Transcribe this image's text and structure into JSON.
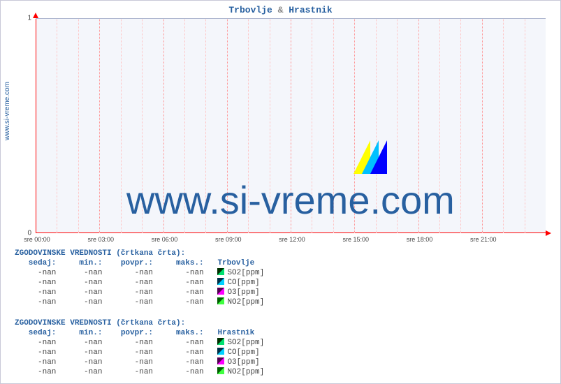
{
  "title": {
    "part1": "Trbovlje",
    "sep": "&",
    "part2": "Hrastnik"
  },
  "ylabel": "www.si-vreme.com",
  "watermark": "www.si-vreme.com",
  "chart": {
    "type": "line",
    "background_color": "#f4f6fb",
    "axis_color": "#ff0000",
    "grid_color_minor": "#ffc0c0",
    "grid_color_major": "#ff9090",
    "hgrid_color": "#b0b8d0",
    "ylim": [
      0,
      1
    ],
    "yticks": [
      0,
      1
    ],
    "xticks": [
      "sre 00:00",
      "sre 03:00",
      "sre 06:00",
      "sre 09:00",
      "sre 12:00",
      "sre 15:00",
      "sre 18:00",
      "sre 21:00"
    ],
    "minor_per_major": 3,
    "watermark_colors": [
      "#ffff00",
      "#00c0ff",
      "#0000ff"
    ]
  },
  "legends": [
    {
      "title": "ZGODOVINSKE VREDNOSTI (črtkana črta):",
      "columns": [
        "sedaj:",
        "min.:",
        "povpr.:",
        "maks.:"
      ],
      "station": "Trbovlje",
      "rows": [
        {
          "values": [
            "-nan",
            "-nan",
            "-nan",
            "-nan"
          ],
          "swatch": [
            "#003000",
            "#00e070"
          ],
          "label": "SO2[ppm]"
        },
        {
          "values": [
            "-nan",
            "-nan",
            "-nan",
            "-nan"
          ],
          "swatch": [
            "#003048",
            "#00d0ff"
          ],
          "label": "CO[ppm]"
        },
        {
          "values": [
            "-nan",
            "-nan",
            "-nan",
            "-nan"
          ],
          "swatch": [
            "#500050",
            "#ff00ff"
          ],
          "label": "O3[ppm]"
        },
        {
          "values": [
            "-nan",
            "-nan",
            "-nan",
            "-nan"
          ],
          "swatch": [
            "#006000",
            "#40ff40"
          ],
          "label": "NO2[ppm]"
        }
      ]
    },
    {
      "title": "ZGODOVINSKE VREDNOSTI (črtkana črta):",
      "columns": [
        "sedaj:",
        "min.:",
        "povpr.:",
        "maks.:"
      ],
      "station": "Hrastnik",
      "rows": [
        {
          "values": [
            "-nan",
            "-nan",
            "-nan",
            "-nan"
          ],
          "swatch": [
            "#003000",
            "#00e070"
          ],
          "label": "SO2[ppm]"
        },
        {
          "values": [
            "-nan",
            "-nan",
            "-nan",
            "-nan"
          ],
          "swatch": [
            "#003048",
            "#00d0ff"
          ],
          "label": "CO[ppm]"
        },
        {
          "values": [
            "-nan",
            "-nan",
            "-nan",
            "-nan"
          ],
          "swatch": [
            "#500050",
            "#ff00ff"
          ],
          "label": "O3[ppm]"
        },
        {
          "values": [
            "-nan",
            "-nan",
            "-nan",
            "-nan"
          ],
          "swatch": [
            "#006000",
            "#40ff40"
          ],
          "label": "NO2[ppm]"
        }
      ]
    }
  ]
}
